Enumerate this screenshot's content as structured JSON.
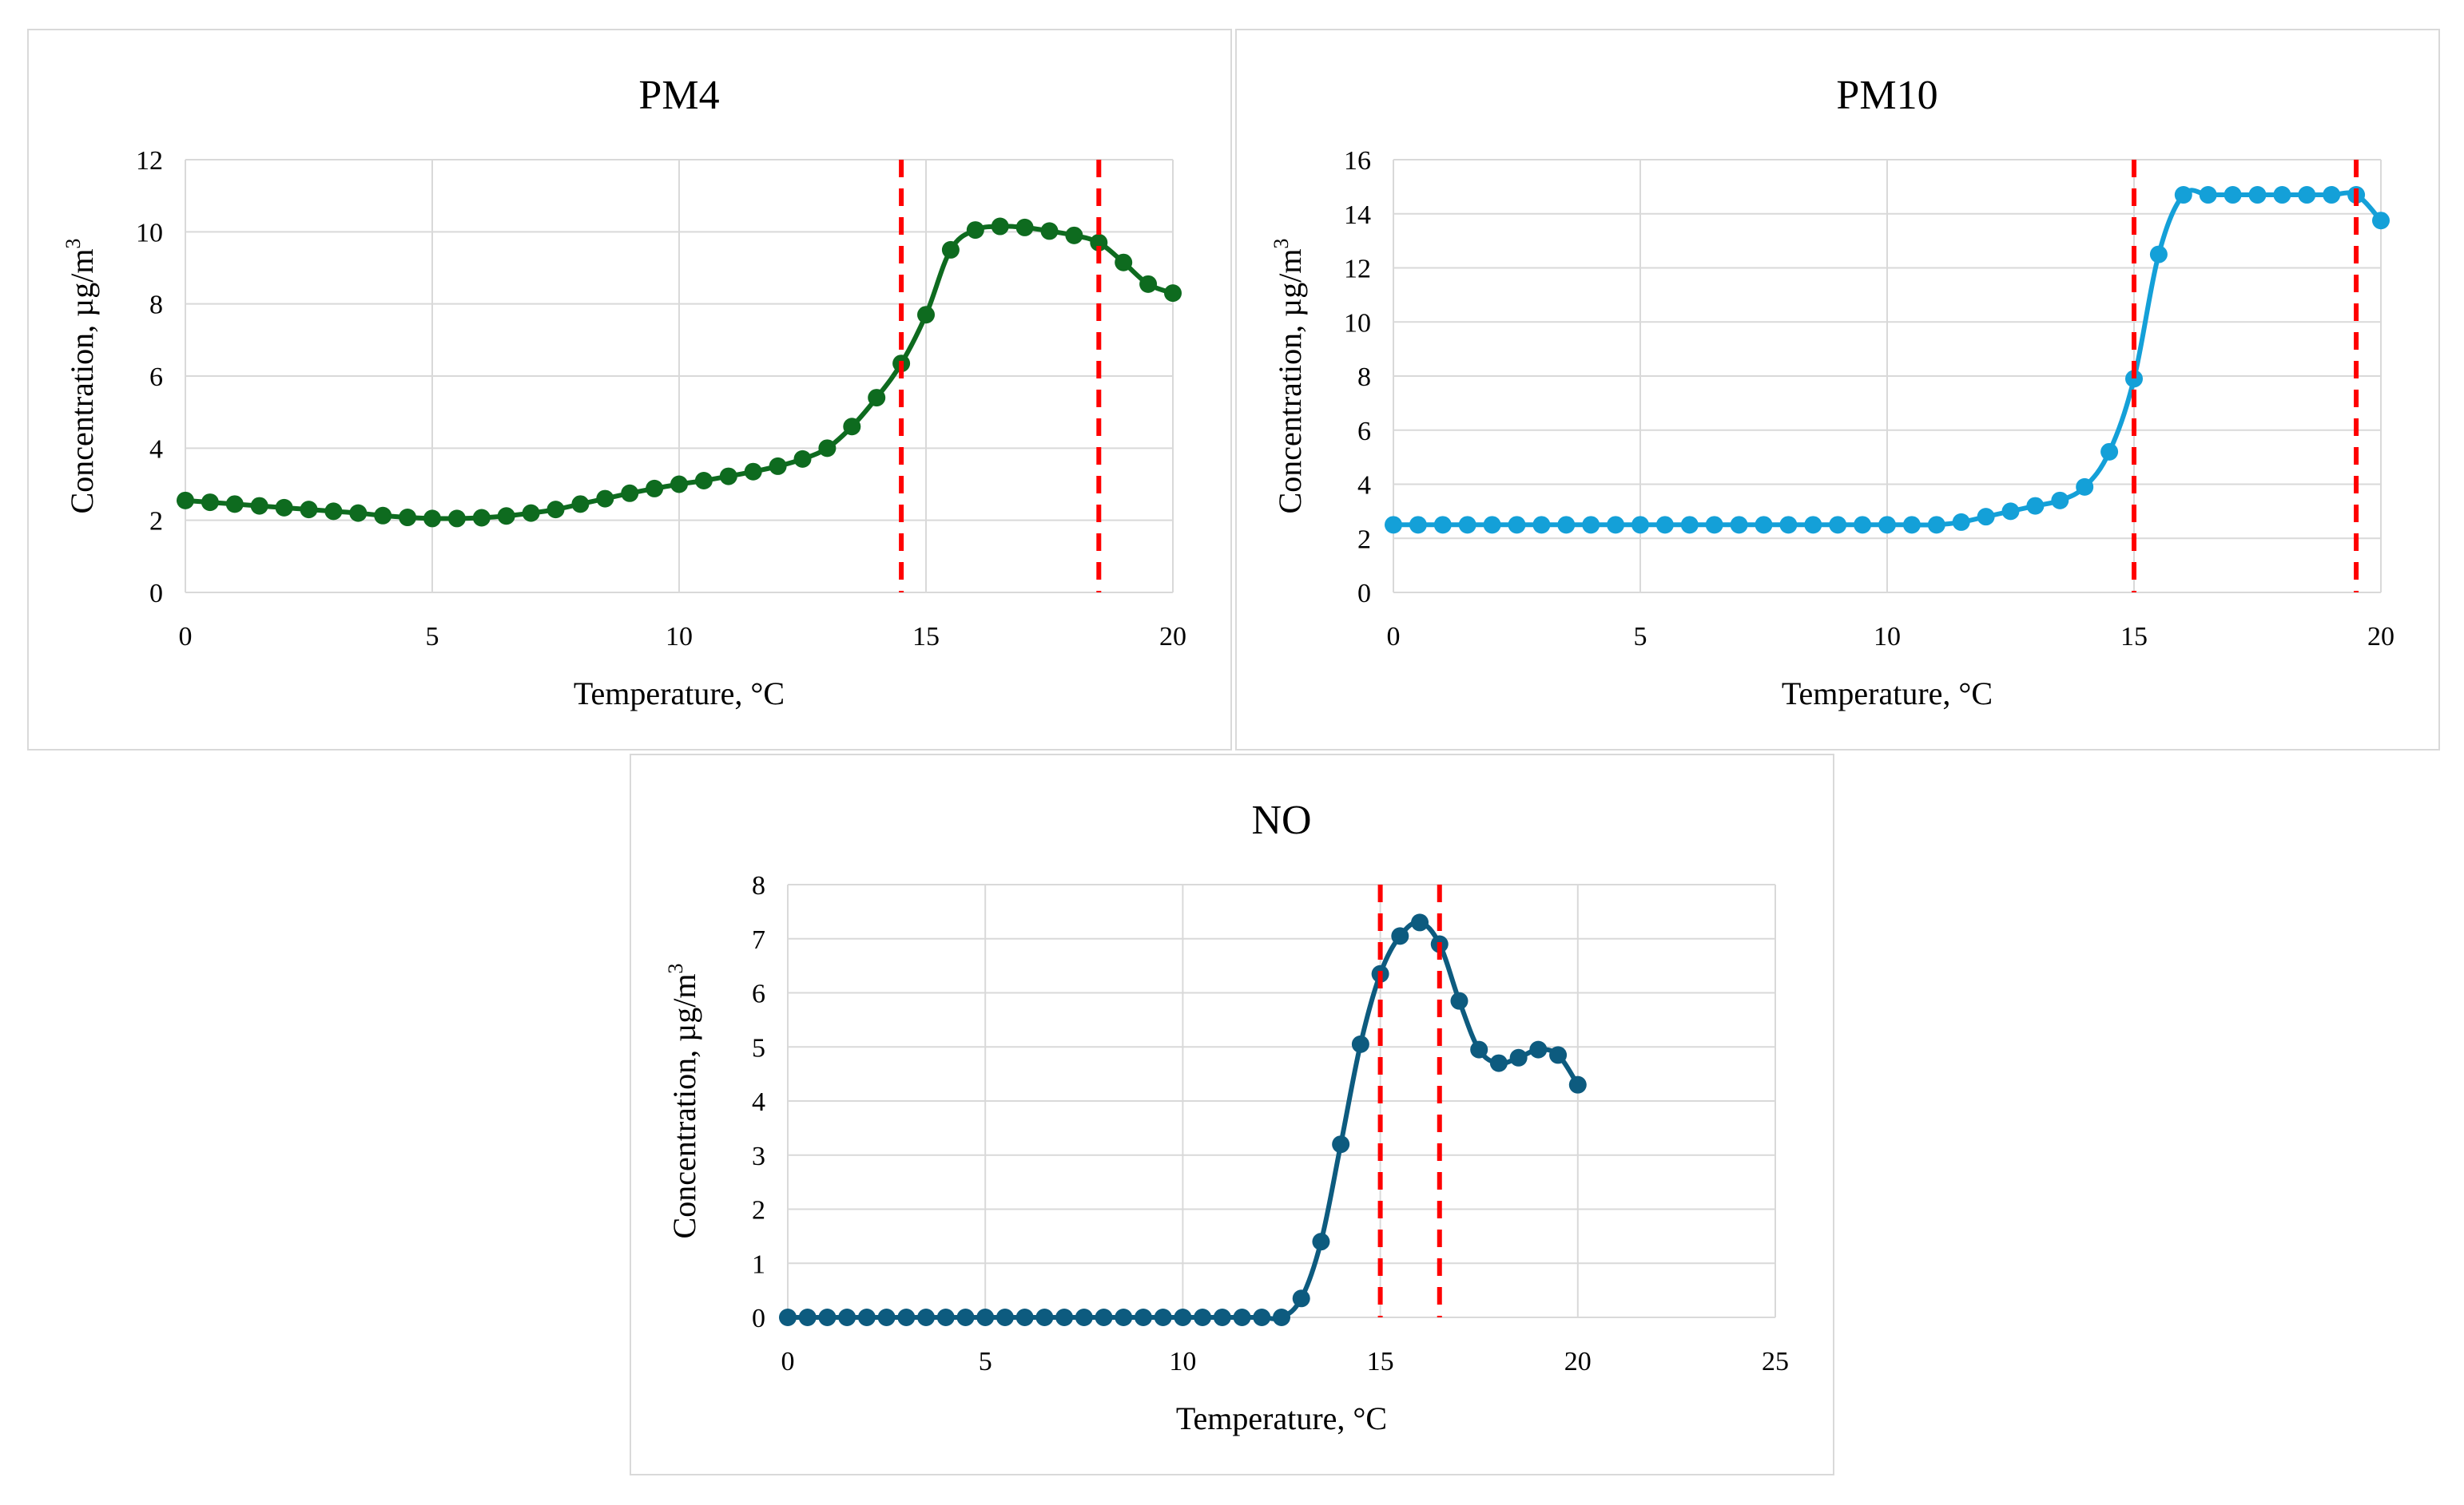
{
  "chart_data": [
    {
      "type": "line",
      "title": "PM4",
      "xlabel": "Temperature, °C",
      "ylabel_main": "Concentration, µg/m",
      "ylabel_sup": "3",
      "xlim": [
        0,
        20
      ],
      "ylim": [
        0,
        12
      ],
      "xticks": [
        "0",
        "5",
        "10",
        "15",
        "20"
      ],
      "yticks": [
        "0",
        "2",
        "4",
        "6",
        "8",
        "10",
        "12"
      ],
      "reference_lines_x": [
        14.5,
        18.5
      ],
      "series": [
        {
          "name": "PM4",
          "color": "#0e6b1f",
          "x": [
            0,
            0.5,
            1,
            1.5,
            2,
            2.5,
            3,
            3.5,
            4,
            4.5,
            5,
            5.5,
            6,
            6.5,
            7,
            7.5,
            8,
            8.5,
            9,
            9.5,
            10,
            10.5,
            11,
            11.5,
            12,
            12.5,
            13,
            13.5,
            14,
            14.5,
            15,
            15.5,
            16,
            16.5,
            17,
            17.5,
            18,
            18.5,
            19,
            19.5,
            20
          ],
          "y": [
            2.55,
            2.5,
            2.45,
            2.4,
            2.35,
            2.3,
            2.25,
            2.2,
            2.13,
            2.08,
            2.05,
            2.05,
            2.07,
            2.12,
            2.2,
            2.3,
            2.45,
            2.6,
            2.75,
            2.88,
            3.0,
            3.1,
            3.22,
            3.35,
            3.5,
            3.7,
            4.0,
            4.6,
            5.4,
            6.35,
            7.7,
            9.5,
            10.05,
            10.15,
            10.12,
            10.02,
            9.9,
            9.7,
            9.15,
            8.55,
            8.3
          ]
        }
      ]
    },
    {
      "type": "line",
      "title": "PM10",
      "xlabel": "Temperature, °C",
      "ylabel_main": "Concentration, µg/m",
      "ylabel_sup": "3",
      "xlim": [
        0,
        20
      ],
      "ylim": [
        0,
        16
      ],
      "xticks": [
        "0",
        "5",
        "10",
        "15",
        "20"
      ],
      "yticks": [
        "0",
        "2",
        "4",
        "6",
        "8",
        "10",
        "12",
        "14",
        "16"
      ],
      "reference_lines_x": [
        15,
        19.5
      ],
      "series": [
        {
          "name": "PM10",
          "color": "#14a0d8",
          "x": [
            0,
            0.5,
            1,
            1.5,
            2,
            2.5,
            3,
            3.5,
            4,
            4.5,
            5,
            5.5,
            6,
            6.5,
            7,
            7.5,
            8,
            8.5,
            9,
            9.5,
            10,
            10.5,
            11,
            11.5,
            12,
            12.5,
            13,
            13.5,
            14,
            14.5,
            15,
            15.5,
            16,
            16.5,
            17,
            17.5,
            18,
            18.5,
            19,
            19.5,
            20
          ],
          "y": [
            2.5,
            2.5,
            2.5,
            2.5,
            2.5,
            2.5,
            2.5,
            2.5,
            2.5,
            2.5,
            2.5,
            2.5,
            2.5,
            2.5,
            2.5,
            2.5,
            2.5,
            2.5,
            2.5,
            2.5,
            2.5,
            2.5,
            2.5,
            2.6,
            2.8,
            3.0,
            3.2,
            3.4,
            3.9,
            5.2,
            7.9,
            12.5,
            14.7,
            14.7,
            14.7,
            14.7,
            14.7,
            14.7,
            14.7,
            14.7,
            13.75
          ]
        }
      ]
    },
    {
      "type": "line",
      "title": "NO",
      "xlabel": "Temperature, °C",
      "ylabel_main": "Concentration, µg/m",
      "ylabel_sup": "3",
      "xlim": [
        0,
        25
      ],
      "ylim": [
        0,
        8
      ],
      "xticks": [
        "0",
        "5",
        "10",
        "15",
        "20",
        "25"
      ],
      "yticks": [
        "0",
        "1",
        "2",
        "3",
        "4",
        "5",
        "6",
        "7",
        "8"
      ],
      "reference_lines_x": [
        15,
        16.5
      ],
      "series": [
        {
          "name": "NO",
          "color": "#0d5b7f",
          "x": [
            0,
            0.5,
            1,
            1.5,
            2,
            2.5,
            3,
            3.5,
            4,
            4.5,
            5,
            5.5,
            6,
            6.5,
            7,
            7.5,
            8,
            8.5,
            9,
            9.5,
            10,
            10.5,
            11,
            11.5,
            12,
            12.5,
            13,
            13.5,
            14,
            14.5,
            15,
            15.5,
            16,
            16.5,
            17,
            17.5,
            18,
            18.5,
            19,
            19.5,
            20
          ],
          "y": [
            0,
            0,
            0,
            0,
            0,
            0,
            0,
            0,
            0,
            0,
            0,
            0,
            0,
            0,
            0,
            0,
            0,
            0,
            0,
            0,
            0,
            0,
            0,
            0,
            0,
            0,
            0.35,
            1.4,
            3.2,
            5.05,
            6.35,
            7.05,
            7.3,
            6.9,
            5.85,
            4.95,
            4.7,
            4.8,
            4.95,
            4.85,
            4.3
          ]
        }
      ]
    }
  ]
}
